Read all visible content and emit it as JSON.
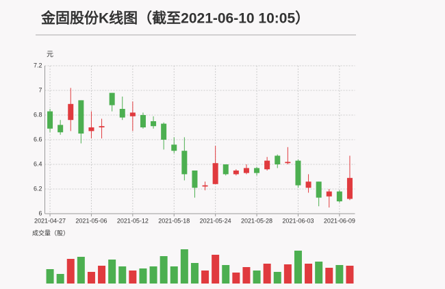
{
  "chart_data": {
    "type": "candlestick",
    "title": "金固股份K线图（截至2021-06-10 10:05）",
    "y_label": "元",
    "volume_label": "成交量（股）",
    "categories": [
      "2021-04-27",
      null,
      null,
      null,
      "2021-05-06",
      null,
      null,
      null,
      "2021-05-12",
      null,
      null,
      null,
      "2021-05-18",
      null,
      null,
      null,
      "2021-05-24",
      null,
      null,
      null,
      "2021-05-28",
      null,
      null,
      null,
      "2021-06-03",
      null,
      null,
      null,
      "2021-06-09",
      null
    ],
    "open": [
      6.83,
      6.72,
      6.76,
      6.92,
      6.67,
      6.7,
      6.98,
      6.85,
      6.79,
      6.8,
      6.75,
      6.73,
      6.56,
      6.51,
      6.35,
      6.22,
      6.24,
      6.4,
      6.32,
      6.33,
      6.37,
      6.36,
      6.47,
      6.41,
      6.43,
      6.21,
      6.26,
      6.14,
      6.18,
      6.12
    ],
    "high": [
      6.85,
      6.76,
      7.02,
      6.92,
      6.83,
      6.77,
      6.98,
      6.95,
      6.91,
      6.82,
      6.79,
      6.74,
      6.62,
      6.62,
      6.35,
      6.26,
      6.55,
      6.4,
      6.36,
      6.4,
      6.38,
      6.46,
      6.48,
      6.54,
      6.44,
      6.32,
      6.26,
      6.2,
      6.19,
      6.47
    ],
    "low": [
      6.66,
      6.64,
      6.67,
      6.57,
      6.61,
      6.61,
      6.83,
      6.76,
      6.67,
      6.69,
      6.69,
      6.52,
      6.49,
      6.27,
      6.13,
      6.19,
      6.24,
      6.31,
      6.31,
      6.32,
      6.31,
      6.35,
      6.37,
      6.4,
      6.21,
      6.17,
      6.06,
      6.05,
      6.09,
      6.11
    ],
    "close": [
      6.69,
      6.66,
      6.89,
      6.65,
      6.7,
      6.71,
      6.88,
      6.78,
      6.82,
      6.7,
      6.71,
      6.6,
      6.51,
      6.32,
      6.21,
      6.23,
      6.41,
      6.32,
      6.35,
      6.37,
      6.33,
      6.43,
      6.4,
      6.42,
      6.23,
      6.26,
      6.13,
      6.18,
      6.1,
      6.29
    ],
    "volume": [
      21,
      14,
      36,
      39,
      17,
      26,
      35,
      25,
      19,
      22,
      25,
      40,
      25,
      50,
      30,
      19,
      42,
      27,
      16,
      24,
      19,
      29,
      17,
      28,
      48,
      29,
      32,
      23,
      27,
      26
    ],
    "ylim": [
      6,
      7.2
    ],
    "yticks": [
      6,
      6.2,
      6.4,
      6.6,
      6.8,
      7,
      7.2
    ],
    "up_color": "#e03a3e",
    "down_color": "#4caf50",
    "grid": true
  }
}
